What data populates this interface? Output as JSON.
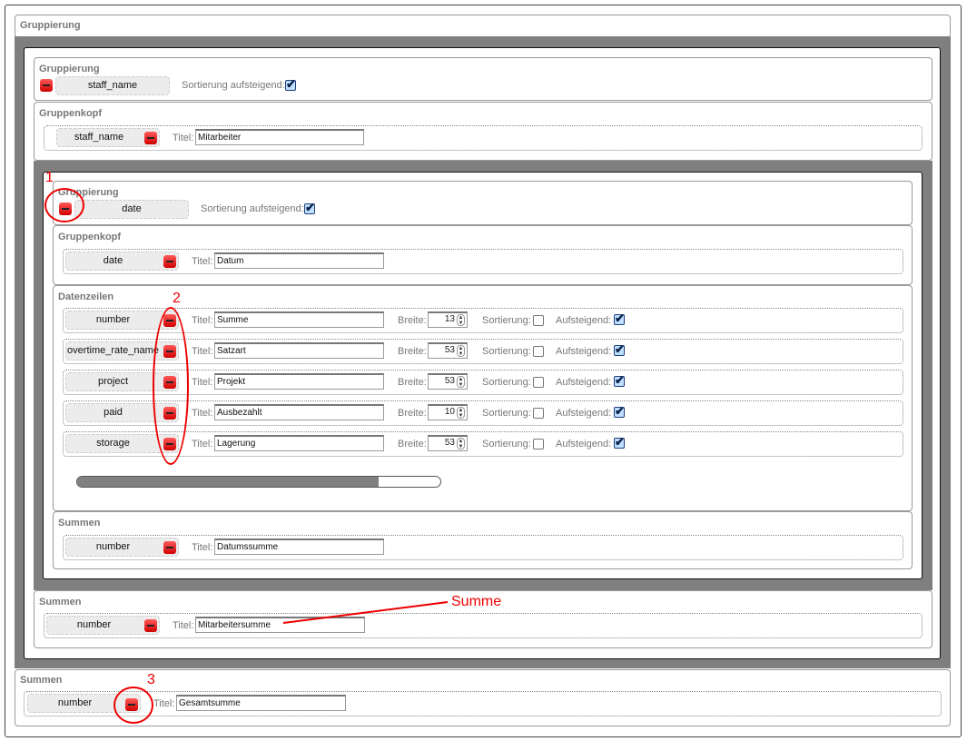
{
  "outer": {
    "group_title": "Gruppierung",
    "sums_title": "Summen",
    "sum_field": "number",
    "sum_title_label": "Titel:",
    "sum_title_value": "Gesamtsumme"
  },
  "level1": {
    "group_title": "Gruppierung",
    "field": "staff_name",
    "sort_label": "Sortierung aufsteigend:",
    "sort_checked": true,
    "header_title": "Gruppenkopf",
    "header_field": "staff_name",
    "header_title_label": "Titel:",
    "header_title_value": "Mitarbeiter",
    "sums_title": "Summen",
    "sum_field": "number",
    "sum_title_label": "Titel:",
    "sum_title_value": "Mitarbeitersumme"
  },
  "level2": {
    "group_title": "Gruppierung",
    "field": "date",
    "sort_label": "Sortierung aufsteigend:",
    "sort_checked": true,
    "header_title": "Gruppenkopf",
    "header_field": "date",
    "header_title_label": "Titel:",
    "header_title_value": "Datum",
    "data_title": "Datenzeilen",
    "labels": {
      "title": "Titel:",
      "width": "Breite:",
      "sort": "Sortierung:",
      "asc": "Aufsteigend:"
    },
    "rows": [
      {
        "field": "number",
        "title": "Summe",
        "width": "13",
        "sort": false,
        "asc": true
      },
      {
        "field": "overtime_rate_name",
        "title": "Satzart",
        "width": "53",
        "sort": false,
        "asc": true
      },
      {
        "field": "project",
        "title": "Projekt",
        "width": "53",
        "sort": false,
        "asc": true
      },
      {
        "field": "paid",
        "title": "Ausbezahlt",
        "width": "10",
        "sort": false,
        "asc": true
      },
      {
        "field": "storage",
        "title": "Lagerung",
        "width": "53",
        "sort": false,
        "asc": true
      }
    ],
    "scroll_fraction": 0.83,
    "sums_title": "Summen",
    "sum_field": "number",
    "sum_title_label": "Titel:",
    "sum_title_value": "Datumssumme"
  },
  "annotations": {
    "n1": "1",
    "n2": "2",
    "n3": "3",
    "summe": "Summe",
    "color": "#e00000"
  }
}
